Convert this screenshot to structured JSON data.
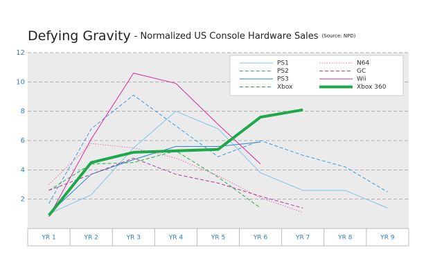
{
  "chart_data": {
    "type": "line",
    "title": "Defying Gravity",
    "subtitle": "- Normalized US Console Hardware Sales",
    "source": "(Source: NPD)",
    "categories": [
      "YR 1",
      "YR 2",
      "YR 3",
      "YR 4",
      "YR 5",
      "YR 6",
      "YR 7",
      "YR 8",
      "YR 9"
    ],
    "ylim": [
      0,
      12
    ],
    "yticks": [
      2,
      4,
      6,
      8,
      10,
      12
    ],
    "grid": true,
    "legend": "top-right",
    "series": [
      {
        "name": "PS1",
        "color": "#7cc4e8",
        "style": "solid",
        "weight": "thin",
        "values": [
          1.0,
          2.3,
          5.5,
          8.0,
          6.8,
          3.8,
          2.6,
          2.6,
          1.4
        ]
      },
      {
        "name": "PS2",
        "color": "#3a9ad9",
        "style": "dashed",
        "weight": "thin",
        "values": [
          1.7,
          6.8,
          9.1,
          7.0,
          4.9,
          6.0,
          5.0,
          4.2,
          2.5
        ]
      },
      {
        "name": "PS3",
        "color": "#2b86cf",
        "style": "solid",
        "weight": "thin",
        "values": [
          1.0,
          3.7,
          4.7,
          5.6,
          5.6,
          5.9,
          null,
          null,
          null
        ]
      },
      {
        "name": "Xbox",
        "color": "#2ca84a",
        "style": "dashed",
        "weight": "thin",
        "values": [
          2.6,
          4.4,
          4.5,
          5.3,
          3.5,
          1.4,
          null,
          null,
          null
        ]
      },
      {
        "name": "N64",
        "color": "#e36fb0",
        "style": "dotted",
        "weight": "thin",
        "values": [
          3.0,
          5.8,
          5.5,
          4.8,
          3.6,
          2.1,
          1.1,
          null,
          null
        ]
      },
      {
        "name": "GC",
        "color": "#b2389a",
        "style": "dashed",
        "weight": "thin",
        "values": [
          2.6,
          3.7,
          4.8,
          3.7,
          3.1,
          2.2,
          1.4,
          null,
          null
        ]
      },
      {
        "name": "Wii",
        "color": "#d9269c",
        "style": "solid",
        "weight": "thin",
        "values": [
          0.8,
          6.1,
          10.6,
          9.9,
          7.1,
          4.4,
          null,
          null,
          null
        ]
      },
      {
        "name": "Xbox 360",
        "color": "#1fa84a",
        "style": "solid",
        "weight": "thick",
        "values": [
          0.9,
          4.5,
          5.2,
          5.3,
          5.4,
          7.6,
          8.1,
          null,
          null
        ]
      }
    ]
  }
}
